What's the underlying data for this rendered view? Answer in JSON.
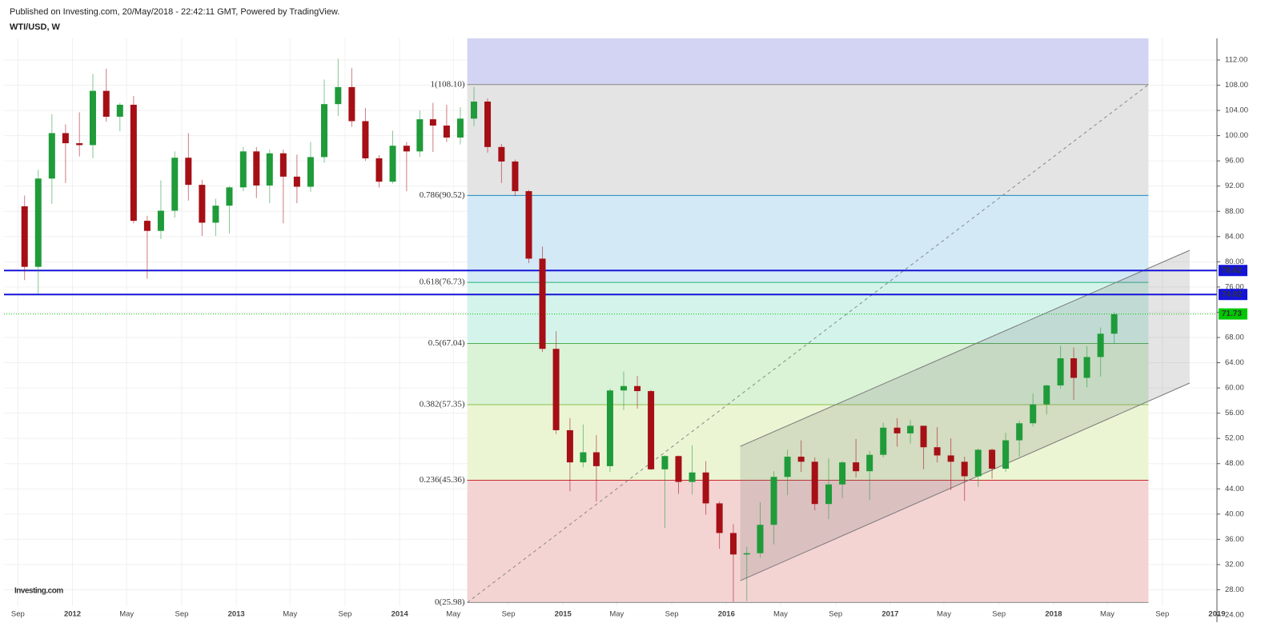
{
  "header": {
    "published": "Published on Investing.com, 20/May/2018 - 22:42:11 GMT, Powered by TradingView.",
    "symbol": "WTI/USD, W"
  },
  "logo": "Investing.com",
  "chart_data": {
    "type": "candlestick",
    "up_color": "#1f9b3a",
    "down_color": "#a50f15",
    "xlim": [
      "2011-08",
      "2019-01"
    ],
    "ylim": [
      22.86,
      115.42
    ],
    "grid": true,
    "xticks": [
      {
        "value": "2011-09",
        "label": "Sep"
      },
      {
        "value": "2012-01",
        "label": "2012"
      },
      {
        "value": "2012-05",
        "label": "May"
      },
      {
        "value": "2012-09",
        "label": "Sep"
      },
      {
        "value": "2013-01",
        "label": "2013"
      },
      {
        "value": "2013-05",
        "label": "May"
      },
      {
        "value": "2013-09",
        "label": "Sep"
      },
      {
        "value": "2014-01",
        "label": "2014"
      },
      {
        "value": "2014-05",
        "label": "May"
      },
      {
        "value": "2014-09",
        "label": "Sep"
      },
      {
        "value": "2015-01",
        "label": "2015"
      },
      {
        "value": "2015-05",
        "label": "May"
      },
      {
        "value": "2015-09",
        "label": "Sep"
      },
      {
        "value": "2016-01",
        "label": "2016"
      },
      {
        "value": "2016-05",
        "label": "May"
      },
      {
        "value": "2016-09",
        "label": "Sep"
      },
      {
        "value": "2017-01",
        "label": "2017"
      },
      {
        "value": "2017-05",
        "label": "May"
      },
      {
        "value": "2017-09",
        "label": "Sep"
      },
      {
        "value": "2018-01",
        "label": "2018"
      },
      {
        "value": "2018-05",
        "label": "May"
      },
      {
        "value": "2018-09",
        "label": "Sep"
      },
      {
        "value": "2019-01",
        "label": "2019"
      }
    ],
    "yticks": [
      {
        "value": 24,
        "label": "24.00"
      },
      {
        "value": 28,
        "label": "28.00"
      },
      {
        "value": 32,
        "label": "32.00"
      },
      {
        "value": 36,
        "label": "36.00"
      },
      {
        "value": 40,
        "label": "40.00"
      },
      {
        "value": 44,
        "label": "44.00"
      },
      {
        "value": 48,
        "label": "48.00"
      },
      {
        "value": 52,
        "label": "52.00"
      },
      {
        "value": 56,
        "label": "56.00"
      },
      {
        "value": 60,
        "label": "60.00"
      },
      {
        "value": 64,
        "label": "64.00"
      },
      {
        "value": 68,
        "label": "68.00"
      },
      {
        "value": 72,
        "label": "72.00"
      },
      {
        "value": 76,
        "label": "76.00"
      },
      {
        "value": 80,
        "label": "80.00"
      },
      {
        "value": 84,
        "label": "84.00"
      },
      {
        "value": 88,
        "label": "88.00"
      },
      {
        "value": 92,
        "label": "92.00"
      },
      {
        "value": 96,
        "label": "96.00"
      },
      {
        "value": 100,
        "label": "100.00"
      },
      {
        "value": 104,
        "label": "104.00"
      },
      {
        "value": 108,
        "label": "108.00"
      },
      {
        "value": 112,
        "label": "112.00"
      }
    ],
    "x": [
      "2011-09",
      "2011-10",
      "2011-11",
      "2011-12",
      "2012-01",
      "2012-02",
      "2012-03",
      "2012-04",
      "2012-05",
      "2012-06",
      "2012-07",
      "2012-08",
      "2012-09",
      "2012-10",
      "2012-11",
      "2012-12",
      "2013-01",
      "2013-02",
      "2013-03",
      "2013-04",
      "2013-05",
      "2013-06",
      "2013-07",
      "2013-08",
      "2013-09",
      "2013-10",
      "2013-11",
      "2013-12",
      "2014-01",
      "2014-02",
      "2014-03",
      "2014-04",
      "2014-05",
      "2014-06",
      "2014-07",
      "2014-08",
      "2014-09",
      "2014-10",
      "2014-11",
      "2014-12",
      "2015-01",
      "2015-02",
      "2015-03",
      "2015-04",
      "2015-05",
      "2015-06",
      "2015-07",
      "2015-08",
      "2015-09",
      "2015-10",
      "2015-11",
      "2015-12",
      "2016-01",
      "2016-02",
      "2016-03",
      "2016-04",
      "2016-05",
      "2016-06",
      "2016-07",
      "2016-08",
      "2016-09",
      "2016-10",
      "2016-11",
      "2016-12",
      "2017-01",
      "2017-02",
      "2017-03",
      "2017-04",
      "2017-05",
      "2017-06",
      "2017-07",
      "2017-08",
      "2017-09",
      "2017-10",
      "2017-11",
      "2017-12",
      "2018-01",
      "2018-02",
      "2018-03",
      "2018-04",
      "2018-05"
    ],
    "open": [
      88.8,
      79.2,
      93.2,
      100.4,
      98.8,
      98.5,
      107.1,
      103.0,
      104.9,
      86.5,
      84.9,
      88.1,
      96.5,
      92.2,
      86.2,
      88.9,
      91.8,
      97.5,
      92.1,
      97.2,
      93.5,
      91.9,
      96.6,
      105.0,
      107.7,
      102.3,
      96.4,
      92.7,
      98.4,
      97.5,
      102.6,
      101.6,
      99.7,
      102.7,
      105.4,
      98.2,
      95.9,
      91.2,
      80.5,
      66.2,
      53.3,
      48.2,
      49.8,
      47.6,
      59.6,
      60.3,
      59.5,
      47.1,
      49.2,
      45.1,
      46.6,
      41.7,
      37.0,
      33.6,
      33.8,
      38.3,
      45.9,
      49.1,
      48.3,
      41.6,
      44.7,
      48.2,
      46.8,
      49.4,
      53.7,
      52.8,
      54.0,
      50.6,
      49.3,
      48.3,
      46.0,
      50.2,
      47.2,
      51.7,
      54.4,
      57.4,
      60.4,
      64.7,
      61.6,
      64.9,
      68.6
    ],
    "high": [
      90.5,
      94.6,
      103.4,
      101.8,
      103.7,
      109.8,
      110.6,
      105.2,
      106.3,
      87.3,
      92.9,
      97.5,
      100.4,
      93.0,
      90.0,
      92.0,
      98.2,
      98.2,
      97.8,
      97.8,
      97.0,
      99.0,
      108.9,
      112.2,
      110.7,
      104.4,
      96.9,
      100.8,
      99.0,
      104.0,
      105.2,
      104.9,
      104.5,
      107.7,
      105.9,
      98.7,
      96.2,
      91.4,
      82.4,
      69.0,
      55.2,
      54.2,
      52.5,
      59.9,
      62.6,
      61.9,
      59.7,
      49.3,
      49.3,
      50.9,
      48.4,
      42.0,
      38.4,
      34.8,
      41.9,
      46.8,
      50.2,
      51.7,
      49.0,
      48.8,
      48.4,
      51.9,
      50.0,
      54.5,
      55.2,
      54.9,
      54.0,
      53.8,
      52.0,
      49.1,
      50.4,
      50.4,
      52.9,
      54.8,
      59.1,
      60.5,
      66.7,
      66.4,
      66.6,
      69.6,
      72.0
    ],
    "low": [
      77.1,
      74.9,
      89.2,
      92.5,
      96.7,
      96.4,
      102.2,
      100.7,
      86.1,
      77.3,
      83.6,
      87.0,
      89.7,
      84.1,
      84.1,
      84.5,
      91.2,
      90.1,
      89.3,
      86.1,
      89.3,
      91.1,
      95.7,
      103.1,
      101.4,
      96.0,
      91.8,
      92.4,
      91.2,
      96.6,
      97.4,
      99.0,
      98.6,
      101.5,
      97.3,
      92.5,
      90.4,
      79.8,
      65.7,
      52.7,
      43.6,
      47.4,
      42.0,
      46.7,
      56.5,
      56.7,
      47.0,
      37.8,
      43.2,
      43.1,
      39.9,
      34.5,
      26.1,
      26.2,
      33.1,
      35.2,
      43.0,
      46.7,
      40.6,
      39.2,
      42.5,
      45.8,
      42.2,
      49.0,
      50.7,
      51.2,
      47.1,
      48.2,
      43.8,
      42.1,
      44.3,
      45.6,
      46.7,
      49.1,
      53.9,
      55.8,
      59.9,
      58.1,
      60.1,
      61.8,
      67.0
    ],
    "close": [
      79.2,
      93.2,
      100.4,
      98.8,
      98.5,
      107.1,
      103.0,
      104.9,
      86.5,
      84.9,
      88.1,
      96.5,
      92.2,
      86.2,
      88.9,
      91.8,
      97.5,
      92.1,
      97.2,
      93.5,
      91.9,
      96.6,
      105.0,
      107.7,
      102.3,
      96.4,
      92.7,
      98.4,
      97.5,
      102.6,
      101.6,
      99.7,
      102.7,
      105.4,
      98.2,
      95.9,
      91.2,
      80.5,
      66.2,
      53.3,
      48.2,
      49.8,
      47.6,
      59.6,
      60.3,
      59.5,
      47.1,
      49.2,
      45.1,
      46.6,
      41.7,
      37.0,
      33.6,
      33.8,
      38.3,
      45.9,
      49.1,
      48.3,
      41.6,
      44.7,
      48.2,
      46.8,
      49.4,
      53.7,
      52.8,
      54.0,
      50.6,
      49.3,
      48.3,
      46.0,
      50.2,
      47.2,
      51.7,
      54.4,
      57.4,
      60.4,
      64.7,
      61.6,
      64.9,
      68.6,
      71.7
    ],
    "fib": {
      "start": "2014-06",
      "end": "2018-08",
      "top_fill": "#d3d3f3",
      "trend_color": "#888888",
      "levels": [
        {
          "value": 108.1,
          "label": "1(108.10)",
          "color": "#888888",
          "fill": "#e4e4e4"
        },
        {
          "value": 90.52,
          "label": "0.786(90.52)",
          "color": "#1e88c0",
          "fill": "#d3e9f5"
        },
        {
          "value": 76.73,
          "label": "0.618(76.73)",
          "color": "#26b07a",
          "fill": "#d4f4eb"
        },
        {
          "value": 67.04,
          "label": "0.5(67.04)",
          "color": "#4caf50",
          "fill": "#daf2d6"
        },
        {
          "value": 57.35,
          "label": "0.382(57.35)",
          "color": "#8bc34a",
          "fill": "#ebf5d4"
        },
        {
          "value": 45.36,
          "label": "0.236(45.36)",
          "color": "#c62828",
          "fill": "#f4d3d3"
        },
        {
          "value": 25.98,
          "label": "0(25.98)",
          "color": "#888888",
          "fill": null
        }
      ]
    },
    "channel": {
      "x": [
        "2016-02",
        "2018-11"
      ],
      "lower": [
        29.45,
        60.77
      ],
      "upper": [
        50.75,
        81.82
      ],
      "color": "#7a7a7a"
    },
    "price_lines": [
      {
        "value": 78.62,
        "color": "#1414d8",
        "style": "solid"
      },
      {
        "value": 74.82,
        "color": "#1414d8",
        "style": "solid"
      },
      {
        "value": 71.73,
        "color": "#00c800",
        "style": "dotted"
      }
    ]
  }
}
